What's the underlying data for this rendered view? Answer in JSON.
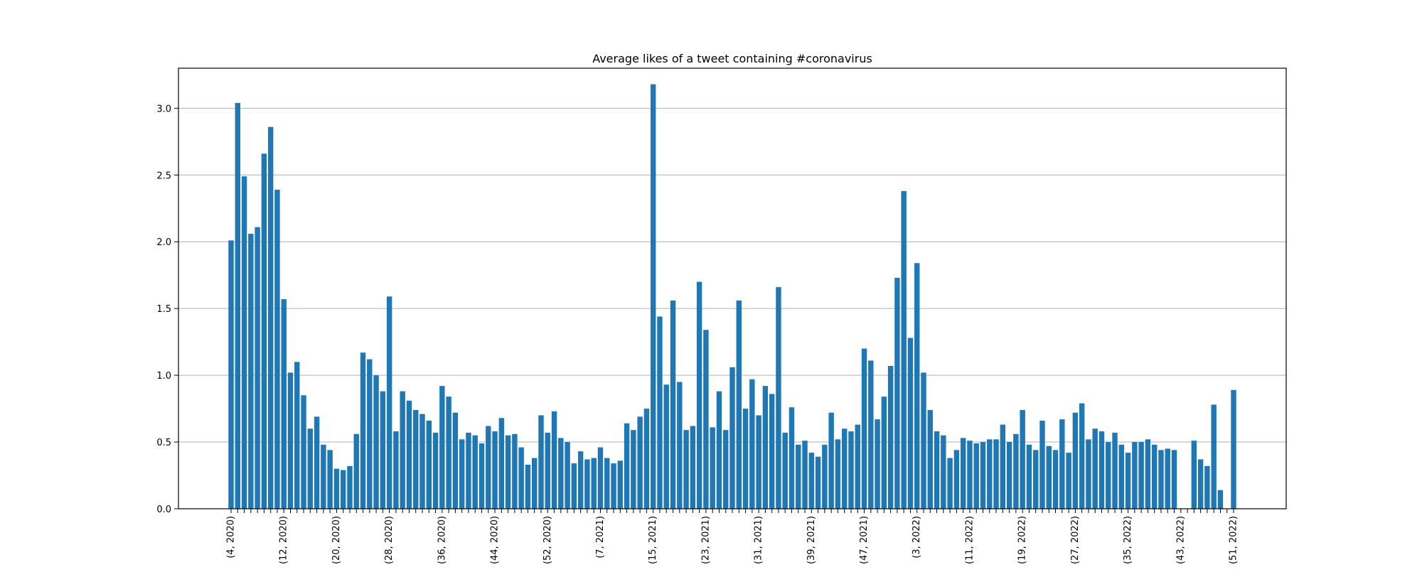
{
  "chart_data": {
    "type": "bar",
    "title": "Average likes of a tweet containing #coronavirus",
    "xlabel": "",
    "ylabel": "",
    "ylim": [
      0,
      3.3
    ],
    "yticks": [
      "0.0",
      "0.5",
      "1.0",
      "1.5",
      "2.0",
      "2.5",
      "3.0"
    ],
    "grid": "y",
    "bar_color": "#1f77b4",
    "categories": [
      "(4, 2020)",
      "(5, 2020)",
      "(6, 2020)",
      "(7, 2020)",
      "(8, 2020)",
      "(9, 2020)",
      "(10, 2020)",
      "(11, 2020)",
      "(12, 2020)",
      "(13, 2020)",
      "(14, 2020)",
      "(15, 2020)",
      "(16, 2020)",
      "(17, 2020)",
      "(18, 2020)",
      "(19, 2020)",
      "(20, 2020)",
      "(21, 2020)",
      "(22, 2020)",
      "(23, 2020)",
      "(24, 2020)",
      "(25, 2020)",
      "(26, 2020)",
      "(27, 2020)",
      "(28, 2020)",
      "(29, 2020)",
      "(30, 2020)",
      "(31, 2020)",
      "(32, 2020)",
      "(33, 2020)",
      "(34, 2020)",
      "(35, 2020)",
      "(36, 2020)",
      "(37, 2020)",
      "(38, 2020)",
      "(39, 2020)",
      "(40, 2020)",
      "(41, 2020)",
      "(42, 2020)",
      "(43, 2020)",
      "(44, 2020)",
      "(45, 2020)",
      "(46, 2020)",
      "(47, 2020)",
      "(48, 2020)",
      "(49, 2020)",
      "(50, 2020)",
      "(51, 2020)",
      "(52, 2020)",
      "(53, 2020)",
      "(1, 2021)",
      "(2, 2021)",
      "(3, 2021)",
      "(4, 2021)",
      "(5, 2021)",
      "(6, 2021)",
      "(7, 2021)",
      "(8, 2021)",
      "(9, 2021)",
      "(10, 2021)",
      "(11, 2021)",
      "(12, 2021)",
      "(13, 2021)",
      "(14, 2021)",
      "(15, 2021)",
      "(16, 2021)",
      "(17, 2021)",
      "(18, 2021)",
      "(19, 2021)",
      "(20, 2021)",
      "(21, 2021)",
      "(22, 2021)",
      "(23, 2021)",
      "(24, 2021)",
      "(25, 2021)",
      "(26, 2021)",
      "(27, 2021)",
      "(28, 2021)",
      "(29, 2021)",
      "(30, 2021)",
      "(31, 2021)",
      "(32, 2021)",
      "(33, 2021)",
      "(34, 2021)",
      "(35, 2021)",
      "(36, 2021)",
      "(37, 2021)",
      "(38, 2021)",
      "(39, 2021)",
      "(40, 2021)",
      "(41, 2021)",
      "(42, 2021)",
      "(43, 2021)",
      "(44, 2021)",
      "(45, 2021)",
      "(46, 2021)",
      "(47, 2021)",
      "(48, 2021)",
      "(49, 2021)",
      "(50, 2021)",
      "(51, 2021)",
      "(52, 2021)",
      "(1, 2022)",
      "(2, 2022)",
      "(3, 2022)",
      "(4, 2022)",
      "(5, 2022)",
      "(6, 2022)",
      "(7, 2022)",
      "(8, 2022)",
      "(9, 2022)",
      "(10, 2022)",
      "(11, 2022)",
      "(12, 2022)",
      "(13, 2022)",
      "(14, 2022)",
      "(15, 2022)",
      "(16, 2022)",
      "(17, 2022)",
      "(18, 2022)",
      "(19, 2022)",
      "(20, 2022)",
      "(21, 2022)",
      "(22, 2022)",
      "(23, 2022)",
      "(24, 2022)",
      "(25, 2022)",
      "(26, 2022)",
      "(27, 2022)",
      "(28, 2022)",
      "(29, 2022)",
      "(30, 2022)",
      "(31, 2022)",
      "(32, 2022)",
      "(33, 2022)",
      "(34, 2022)",
      "(35, 2022)",
      "(36, 2022)",
      "(37, 2022)",
      "(38, 2022)",
      "(39, 2022)",
      "(40, 2022)",
      "(41, 2022)",
      "(42, 2022)",
      "(43, 2022)",
      "(44, 2022)",
      "(45, 2022)",
      "(46, 2022)",
      "(47, 2022)",
      "(48, 2022)",
      "(49, 2022)",
      "(50, 2022)",
      "(51, 2022)"
    ],
    "tick_labels_shown": [
      "(4, 2020)",
      "(12, 2020)",
      "(20, 2020)",
      "(28, 2020)",
      "(36, 2020)",
      "(44, 2020)",
      "(52, 2020)",
      "(7, 2021)",
      "(15, 2021)",
      "(23, 2021)",
      "(31, 2021)",
      "(39, 2021)",
      "(47, 2021)",
      "(3, 2022)",
      "(11, 2022)",
      "(19, 2022)",
      "(27, 2022)",
      "(35, 2022)",
      "(43, 2022)",
      "(51, 2022)"
    ],
    "values": [
      2.01,
      3.04,
      2.49,
      2.06,
      2.11,
      2.66,
      2.86,
      2.39,
      1.57,
      1.02,
      1.1,
      0.85,
      0.6,
      0.69,
      0.48,
      0.44,
      0.3,
      0.29,
      0.32,
      0.56,
      1.17,
      1.12,
      1.0,
      0.88,
      1.59,
      0.58,
      0.88,
      0.81,
      0.74,
      0.71,
      0.66,
      0.57,
      0.92,
      0.84,
      0.72,
      0.52,
      0.57,
      0.55,
      0.49,
      0.62,
      0.58,
      0.68,
      0.55,
      0.56,
      0.46,
      0.33,
      0.38,
      0.7,
      0.57,
      0.73,
      0.53,
      0.5,
      0.34,
      0.43,
      0.37,
      0.38,
      0.46,
      0.38,
      0.34,
      0.36,
      0.64,
      0.59,
      0.69,
      0.75,
      3.18,
      1.44,
      0.93,
      1.56,
      0.95,
      0.59,
      0.62,
      1.7,
      1.34,
      0.61,
      0.88,
      0.59,
      1.06,
      1.56,
      0.75,
      0.97,
      0.7,
      0.92,
      0.86,
      1.66,
      0.57,
      0.76,
      0.48,
      0.51,
      0.42,
      0.39,
      0.48,
      0.72,
      0.52,
      0.6,
      0.58,
      0.63,
      1.2,
      1.11,
      0.67,
      0.84,
      1.07,
      1.73,
      2.38,
      1.28,
      1.84,
      1.02,
      0.74,
      0.58,
      0.55,
      0.38,
      0.44,
      0.53,
      0.51,
      0.49,
      0.5,
      0.52,
      0.52,
      0.63,
      0.5,
      0.56,
      0.74,
      0.48,
      0.44,
      0.66,
      0.47,
      0.44,
      0.67,
      0.42,
      0.72,
      0.79,
      0.52,
      0.6,
      0.58,
      0.5,
      0.57,
      0.48,
      0.42,
      0.5,
      0.5,
      0.52,
      0.48,
      0.44,
      0.45,
      0.44,
      null,
      null,
      0.51,
      0.37,
      0.32,
      0.78,
      0.14,
      null,
      0.89
    ]
  }
}
